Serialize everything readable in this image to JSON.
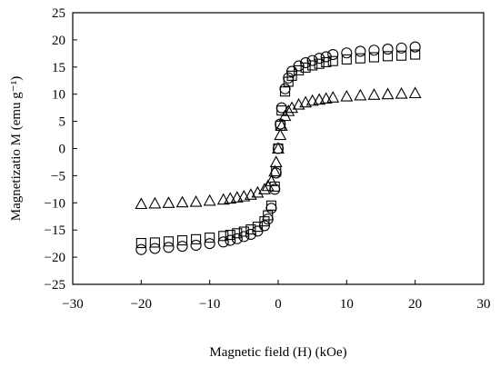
{
  "chart_data": {
    "type": "scatter",
    "xlabel": "Magnetic field (H) (kOe)",
    "ylabel": "Magnetizatio M (emu g⁻¹)",
    "xlim": [
      -30,
      30
    ],
    "ylim": [
      -25,
      25
    ],
    "x_ticks": [
      -30,
      -20,
      -10,
      0,
      10,
      20,
      30
    ],
    "y_ticks": [
      -25,
      -20,
      -15,
      -10,
      -5,
      0,
      5,
      10,
      15,
      20,
      25
    ],
    "x_tick_labels": [
      "−30",
      "−20",
      "−10",
      "0",
      "10",
      "20",
      "30"
    ],
    "y_tick_labels": [
      "−25",
      "−20",
      "−15",
      "−10",
      "−5",
      "0",
      "5",
      "10",
      "15",
      "20",
      "25"
    ],
    "grid": false,
    "legend": "none",
    "series": [
      {
        "marker": "circle",
        "x": [
          -20,
          -18,
          -16,
          -14,
          -12,
          -10,
          -8,
          -7,
          -6,
          -5,
          -4,
          -3,
          -2,
          -1.5,
          -1,
          -0.5,
          -0.3,
          0,
          0.3,
          0.5,
          1,
          1.5,
          2,
          3,
          4,
          5,
          6,
          7,
          8,
          10,
          12,
          14,
          16,
          18,
          20
        ],
        "y": [
          -18.6,
          -18.4,
          -18.2,
          -18.0,
          -17.8,
          -17.5,
          -17.2,
          -16.9,
          -16.6,
          -16.2,
          -15.8,
          -15.2,
          -14.2,
          -13.0,
          -11.0,
          -7.5,
          -4.5,
          0,
          4.5,
          7.5,
          11.0,
          13.0,
          14.2,
          15.2,
          15.8,
          16.2,
          16.6,
          16.9,
          17.3,
          17.6,
          17.9,
          18.1,
          18.3,
          18.5,
          18.7
        ]
      },
      {
        "marker": "square",
        "x": [
          -20,
          -18,
          -16,
          -14,
          -12,
          -10,
          -8,
          -7,
          -6,
          -5,
          -4,
          -3,
          -2,
          -1.5,
          -1,
          -0.5,
          -0.3,
          0,
          0.3,
          0.5,
          1,
          1.5,
          2,
          3,
          4,
          5,
          6,
          7,
          8,
          10,
          12,
          14,
          16,
          18,
          20
        ],
        "y": [
          -17.4,
          -17.3,
          -17.1,
          -16.9,
          -16.7,
          -16.4,
          -16.1,
          -15.9,
          -15.6,
          -15.3,
          -14.9,
          -14.4,
          -13.4,
          -12.3,
          -10.5,
          -7.0,
          -4.2,
          0,
          4.2,
          7.0,
          10.5,
          12.3,
          13.4,
          14.4,
          14.9,
          15.3,
          15.6,
          15.9,
          16.1,
          16.4,
          16.6,
          16.8,
          17.0,
          17.1,
          17.3
        ]
      },
      {
        "marker": "triangle",
        "x": [
          -20,
          -18,
          -16,
          -14,
          -12,
          -10,
          -8,
          -7,
          -6,
          -5,
          -4,
          -3,
          -2,
          -1.5,
          -1,
          -0.5,
          -0.3,
          0,
          0.3,
          0.5,
          1,
          1.5,
          2,
          3,
          4,
          5,
          6,
          7,
          8,
          10,
          12,
          14,
          16,
          18,
          20
        ],
        "y": [
          -10.2,
          -10.1,
          -10.0,
          -9.9,
          -9.8,
          -9.6,
          -9.4,
          -9.2,
          -9.0,
          -8.8,
          -8.5,
          -8.1,
          -7.5,
          -6.9,
          -6.0,
          -4.2,
          -2.5,
          0,
          2.5,
          4.2,
          6.0,
          6.9,
          7.5,
          8.1,
          8.5,
          8.8,
          9.0,
          9.2,
          9.4,
          9.6,
          9.8,
          9.9,
          10.0,
          10.1,
          10.2
        ]
      }
    ]
  }
}
